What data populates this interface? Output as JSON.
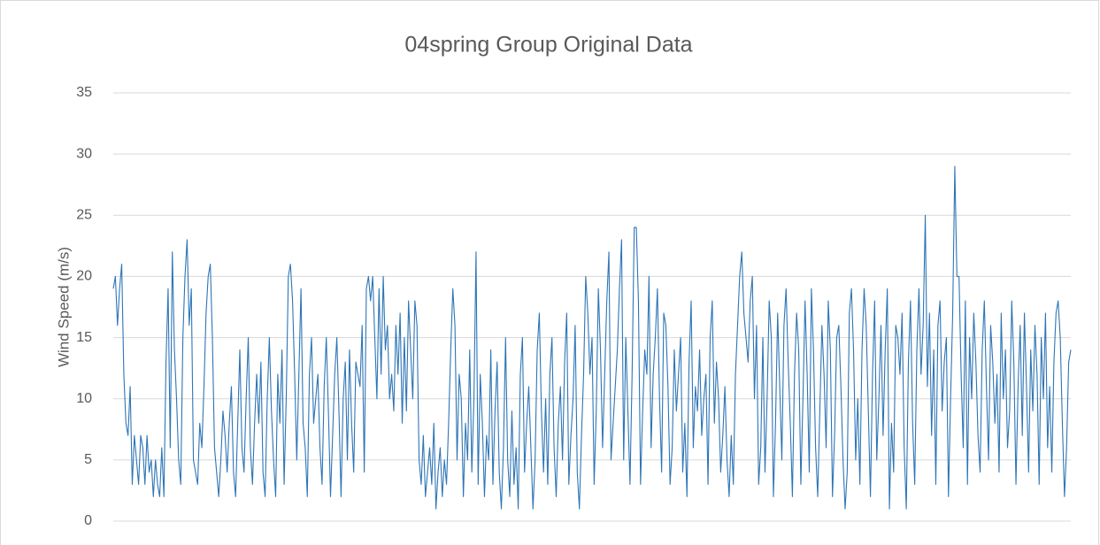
{
  "chart_data": {
    "type": "line",
    "title": "04spring Group Original Data",
    "y_label": "Wind Speed (m/s)",
    "series": [
      {
        "color": "#2e75b6",
        "values": [
          19,
          20,
          16,
          19,
          21,
          12,
          8,
          7,
          11,
          3,
          7,
          5,
          3,
          7,
          6,
          3,
          7,
          4,
          5,
          2,
          5,
          3,
          2,
          6,
          2,
          13,
          19,
          6,
          22,
          14,
          10,
          5,
          3,
          15,
          20,
          23,
          16,
          19,
          5,
          4,
          3,
          8,
          6,
          11,
          17,
          20,
          21,
          15,
          6,
          4,
          2,
          5,
          9,
          7,
          4,
          8,
          11,
          4,
          2,
          8,
          14,
          6,
          4,
          10,
          15,
          6,
          3,
          8,
          12,
          8,
          13,
          4,
          2,
          10,
          15,
          9,
          5,
          2,
          12,
          8,
          14,
          3,
          10,
          20,
          21,
          18,
          12,
          5,
          12,
          19,
          8,
          6,
          2,
          12,
          15,
          8,
          10,
          12,
          6,
          3,
          11,
          15,
          9,
          2,
          7,
          12,
          15,
          9,
          2,
          10,
          13,
          5,
          14,
          8,
          4,
          13,
          12,
          11,
          16,
          4,
          19,
          20,
          18,
          20,
          15,
          10,
          19,
          12,
          20,
          14,
          16,
          10,
          12,
          9,
          16,
          12,
          17,
          8,
          15,
          9,
          18,
          14,
          10,
          18,
          16,
          5,
          3,
          7,
          2,
          4,
          6,
          3,
          8,
          1,
          4,
          6,
          2,
          5,
          3,
          8,
          14,
          19,
          16,
          5,
          12,
          10,
          2,
          8,
          5,
          14,
          4,
          10,
          22,
          3,
          12,
          8,
          2,
          7,
          5,
          14,
          3,
          9,
          13,
          4,
          1,
          6,
          15,
          5,
          2,
          9,
          3,
          6,
          1,
          12,
          15,
          4,
          8,
          11,
          6,
          1,
          5,
          14,
          17,
          9,
          4,
          10,
          3,
          12,
          15,
          6,
          2,
          8,
          11,
          5,
          13,
          17,
          3,
          7,
          10,
          16,
          4,
          1,
          7,
          12,
          20,
          17,
          12,
          15,
          3,
          9,
          19,
          14,
          6,
          12,
          18,
          22,
          5,
          8,
          11,
          14,
          19,
          23,
          5,
          15,
          9,
          3,
          12,
          24,
          24,
          18,
          3,
          9,
          14,
          12,
          20,
          6,
          12,
          15,
          19,
          10,
          4,
          17,
          16,
          11,
          3,
          6,
          14,
          9,
          12,
          15,
          4,
          8,
          2,
          13,
          18,
          6,
          11,
          9,
          14,
          7,
          10,
          12,
          3,
          15,
          18,
          8,
          13,
          10,
          4,
          7,
          11,
          5,
          2,
          7,
          3,
          12,
          16,
          20,
          22,
          17,
          15,
          13,
          18,
          20,
          10,
          16,
          3,
          6,
          15,
          4,
          10,
          18,
          15,
          2,
          8,
          17,
          11,
          5,
          16,
          19,
          13,
          8,
          2,
          12,
          17,
          14,
          3,
          10,
          18,
          12,
          4,
          19,
          14,
          6,
          2,
          9,
          16,
          12,
          6,
          18,
          14,
          2,
          7,
          15,
          16,
          11,
          5,
          1,
          4,
          17,
          19,
          14,
          5,
          10,
          3,
          14,
          19,
          16,
          9,
          2,
          12,
          18,
          5,
          10,
          16,
          7,
          14,
          19,
          1,
          8,
          4,
          16,
          15,
          12,
          17,
          6,
          1,
          13,
          18,
          8,
          3,
          14,
          19,
          12,
          16,
          25,
          11,
          17,
          7,
          14,
          3,
          16,
          18,
          9,
          13,
          15,
          2,
          10,
          17,
          29,
          20,
          20,
          12,
          6,
          18,
          3,
          15,
          10,
          17,
          13,
          7,
          4,
          14,
          18,
          11,
          5,
          16,
          13,
          8,
          12,
          4,
          17,
          10,
          14,
          6,
          9,
          18,
          13,
          3,
          11,
          16,
          7,
          17,
          11,
          4,
          14,
          9,
          16,
          12,
          3,
          15,
          10,
          17,
          6,
          11,
          4,
          13,
          17,
          18,
          15,
          8,
          2,
          6,
          13,
          14
        ]
      }
    ],
    "ylim": [
      0,
      35
    ],
    "yticks": [
      0,
      5,
      10,
      15,
      20,
      25,
      30,
      35
    ],
    "grid": true
  }
}
